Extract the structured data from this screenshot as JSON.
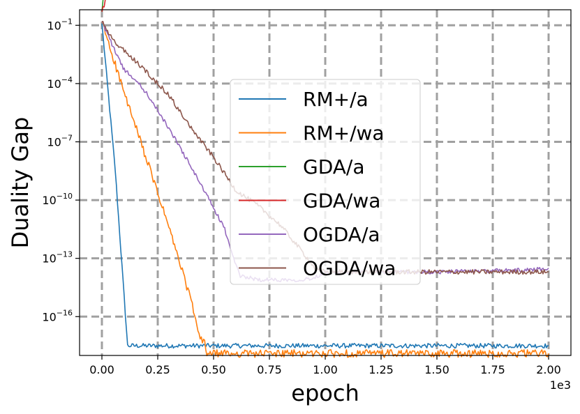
{
  "colors": {
    "RM+/a": "#1f77b4",
    "RM+/wa": "#ff7f0e",
    "GDA/a": "#2ca02c",
    "GDA/wa": "#d62728",
    "OGDA/a": "#9467bd",
    "OGDA/wa": "#8c564b",
    "grid": "#a0a0a0"
  },
  "chart_data": {
    "type": "line",
    "title": "",
    "xlabel": "epoch",
    "ylabel": "Duality Gap",
    "x_offset_text": "1e3",
    "xlim": [
      -0.1,
      2.1
    ],
    "ylim_log10": [
      -18.0,
      -0.2
    ],
    "xscale": "linear",
    "yscale": "log",
    "grid": true,
    "legend_position": "center",
    "x_ticks": [
      0,
      0.25,
      0.5,
      0.75,
      1.0,
      1.25,
      1.5,
      1.75,
      2.0
    ],
    "x_tick_labels": [
      "0.00",
      "0.25",
      "0.50",
      "0.75",
      "1.00",
      "1.25",
      "1.50",
      "1.75",
      "2.00"
    ],
    "y_ticks": [
      {
        "base": "10",
        "exp": "−1",
        "log10": -1
      },
      {
        "base": "10",
        "exp": "−4",
        "log10": -4
      },
      {
        "base": "10",
        "exp": "−7",
        "log10": -7
      },
      {
        "base": "10",
        "exp": "−10",
        "log10": -10
      },
      {
        "base": "10",
        "exp": "−13",
        "log10": -13
      },
      {
        "base": "10",
        "exp": "−16",
        "log10": -16
      }
    ],
    "series": [
      {
        "name": "RM+/a",
        "noise": 0.12,
        "points": [
          [
            0,
            -0.9
          ],
          [
            0.06,
            -8.5
          ],
          [
            0.115,
            -17.5
          ],
          [
            2.0,
            -17.5
          ]
        ]
      },
      {
        "name": "RM+/wa",
        "noise": 0.2,
        "points": [
          [
            0,
            -0.8
          ],
          [
            0.1,
            -4.5
          ],
          [
            0.2,
            -7.9
          ],
          [
            0.3,
            -11.4
          ],
          [
            0.4,
            -15.2
          ],
          [
            0.44,
            -17.2
          ],
          [
            0.46,
            -17.3
          ],
          [
            0.47,
            -17.9
          ],
          [
            2.0,
            -17.9
          ]
        ]
      },
      {
        "name": "GDA/a",
        "noise": 0.15,
        "points": [
          [
            0,
            -0.3
          ],
          [
            0.01,
            0.75
          ],
          [
            2.0,
            0.75
          ]
        ]
      },
      {
        "name": "GDA/wa",
        "noise": 0.15,
        "points": [
          [
            0,
            -0.3
          ],
          [
            0.02,
            0.4
          ],
          [
            0.06,
            0.55
          ],
          [
            0.1,
            0.7
          ],
          [
            2.0,
            0.7
          ]
        ]
      },
      {
        "name": "OGDA/a",
        "noise": 0.1,
        "points": [
          [
            0,
            -0.8
          ],
          [
            0.05,
            -2.1
          ],
          [
            0.1,
            -3.3
          ],
          [
            0.15,
            -3.8
          ],
          [
            0.2,
            -4.5
          ],
          [
            0.3,
            -6.3
          ],
          [
            0.4,
            -8.3
          ],
          [
            0.5,
            -10.4
          ],
          [
            0.55,
            -11.5
          ],
          [
            0.6,
            -13.4
          ],
          [
            0.62,
            -13.9
          ],
          [
            0.7,
            -14.1
          ],
          [
            0.9,
            -14.1
          ],
          [
            0.95,
            -14.0
          ],
          [
            1.0,
            -13.7
          ],
          [
            1.5,
            -13.7
          ],
          [
            1.9,
            -13.6
          ],
          [
            2.0,
            -13.5
          ]
        ]
      },
      {
        "name": "OGDA/wa",
        "noise": 0.12,
        "points": [
          [
            0,
            -0.8
          ],
          [
            0.05,
            -1.8
          ],
          [
            0.1,
            -2.3
          ],
          [
            0.2,
            -3.4
          ],
          [
            0.3,
            -4.6
          ],
          [
            0.4,
            -6.3
          ],
          [
            0.5,
            -7.8
          ],
          [
            0.6,
            -9.5
          ],
          [
            0.7,
            -10.3
          ],
          [
            0.8,
            -11.3
          ],
          [
            0.9,
            -12.7
          ],
          [
            0.96,
            -13.6
          ],
          [
            1.0,
            -13.7
          ],
          [
            2.0,
            -13.7
          ]
        ]
      }
    ]
  }
}
